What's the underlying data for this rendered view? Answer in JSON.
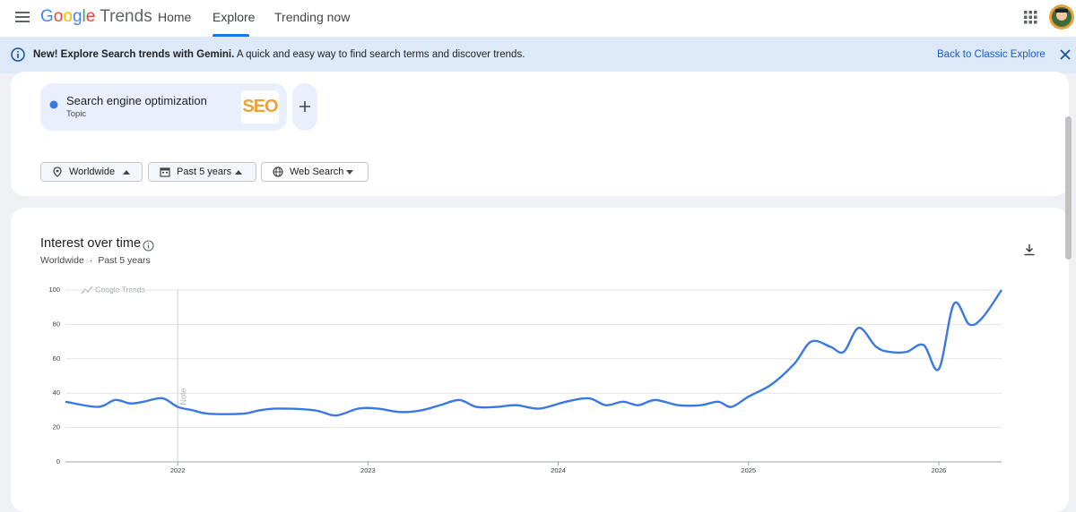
{
  "header": {
    "logo_brand": "Google",
    "logo_product": "Trends",
    "nav": [
      "Home",
      "Explore",
      "Trending now"
    ]
  },
  "banner": {
    "headline": "New! Explore Search trends with Gemini.",
    "text": "A quick and easy way to find search terms and discover trends.",
    "link": "Back to Classic Explore"
  },
  "search_term": {
    "kind": "Topic",
    "icon_text": "SEO"
  },
  "filters": [
    "Worldwide",
    "Past 5 years",
    "Web Search"
  ],
  "panel": {
    "title": "Interest over time",
    "subtitle_region": "Worldwide",
    "subtitle_period": "Past 5 years"
  },
  "chart_data": {
    "type": "line",
    "watermark": "Google Trends",
    "annotations": [
      {
        "text": "Note",
        "x": 2022
      }
    ],
    "x": [
      2021.41,
      2021.58,
      2021.67,
      2021.75,
      2021.82,
      2021.92,
      2022.0,
      2022.08,
      2022.16,
      2022.34,
      2022.43,
      2022.53,
      2022.72,
      2022.83,
      2022.95,
      2023.05,
      2023.17,
      2023.28,
      2023.38,
      2023.48,
      2023.57,
      2023.68,
      2023.78,
      2023.9,
      2024.04,
      2024.16,
      2024.25,
      2024.34,
      2024.42,
      2024.51,
      2024.63,
      2024.75,
      2024.84,
      2024.91,
      2025.0,
      2025.12,
      2025.24,
      2025.33,
      2025.43,
      2025.5,
      2025.58,
      2025.67,
      2025.74,
      2025.83,
      2025.92,
      2026.0,
      2026.08,
      2026.16,
      2026.23,
      2026.33
    ],
    "series": [
      {
        "name": "Search engine optimization",
        "color": "#3a78e4",
        "values": [
          35,
          32,
          36,
          34,
          35,
          37,
          32,
          30,
          28,
          28,
          30,
          31,
          30,
          27,
          31,
          31,
          29,
          30,
          33,
          36,
          32,
          32,
          33,
          31,
          35,
          37,
          33,
          35,
          33,
          36,
          33,
          33,
          35,
          32,
          38,
          45,
          57,
          70,
          67,
          64,
          78,
          67,
          64,
          64,
          68,
          54,
          92,
          80,
          84,
          100
        ]
      }
    ],
    "xlim": [
      2021.41,
      2026.33
    ],
    "xticks": [
      2022,
      2023,
      2024,
      2025,
      2026
    ],
    "ylim": [
      0,
      100
    ],
    "yticks": [
      0,
      20,
      40,
      60,
      80,
      100
    ],
    "grid": true
  }
}
